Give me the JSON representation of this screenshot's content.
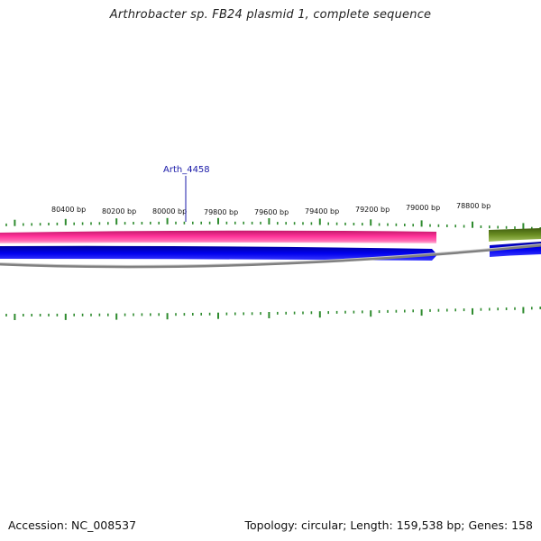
{
  "title": "Arthrobacter sp. FB24 plasmid 1, complete sequence",
  "footer": {
    "accession": "Accession: NC_008537",
    "stats": "Topology: circular; Length: 159,538 bp; Genes: 158"
  },
  "map": {
    "topology": "circular",
    "length_bp": 159538,
    "gene_count": 158,
    "position_labels": [
      "80400 bp",
      "80200 bp",
      "80000 bp",
      "79800 bp",
      "79600 bp",
      "79400 bp",
      "79200 bp",
      "79000 bp",
      "78800 bp"
    ],
    "callout_gene": "Arth_4458",
    "colors": {
      "forward_track": "#ff3399",
      "reverse_track": "#0000ee",
      "other_track": "#6b8e23",
      "backbone": "#808080",
      "tick_marks": "#2e8b2e",
      "callout": "#1a1aa8"
    }
  }
}
